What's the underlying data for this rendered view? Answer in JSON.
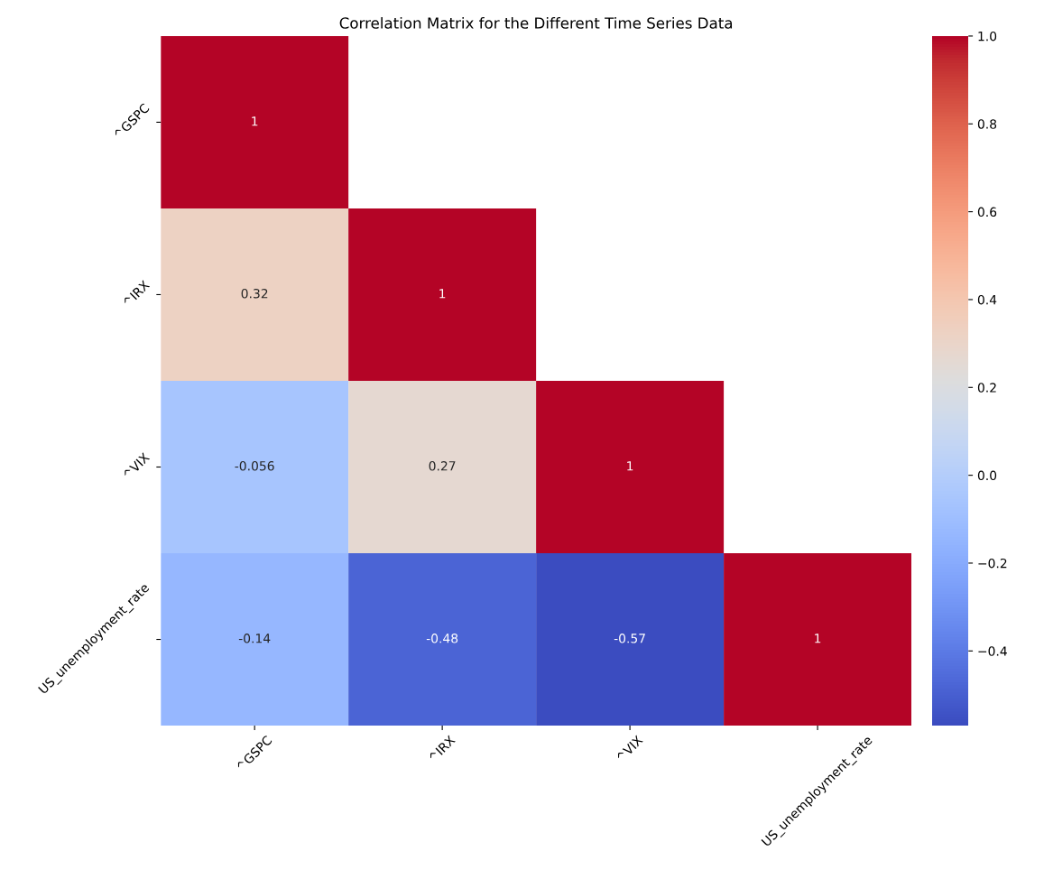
{
  "chart_data": {
    "type": "heatmap",
    "title": "Correlation Matrix for the Different Time Series Data",
    "categories": [
      "^GSPC",
      "^IRX",
      "^VIX",
      "US_unemployment_rate"
    ],
    "y_categories": [
      "^GSPC",
      "^IRX",
      "^VIX",
      "US_unemployment_rate"
    ],
    "cells": [
      [
        1,
        null,
        null,
        null
      ],
      [
        0.32,
        1,
        null,
        null
      ],
      [
        -0.056,
        0.27,
        1,
        null
      ],
      [
        -0.14,
        -0.48,
        -0.57,
        1
      ]
    ],
    "data_labels": true,
    "clim": [
      -0.57,
      1.0
    ],
    "cticks": [
      {
        "value": -0.4,
        "label": "−0.4"
      },
      {
        "value": -0.2,
        "label": "−0.2"
      },
      {
        "value": 0.0,
        "label": "0.0"
      },
      {
        "value": 0.2,
        "label": "0.2"
      },
      {
        "value": 0.4,
        "label": "0.4"
      },
      {
        "value": 0.6,
        "label": "0.6"
      },
      {
        "value": 0.8,
        "label": "0.8"
      },
      {
        "value": 1.0,
        "label": "1.0"
      }
    ]
  }
}
